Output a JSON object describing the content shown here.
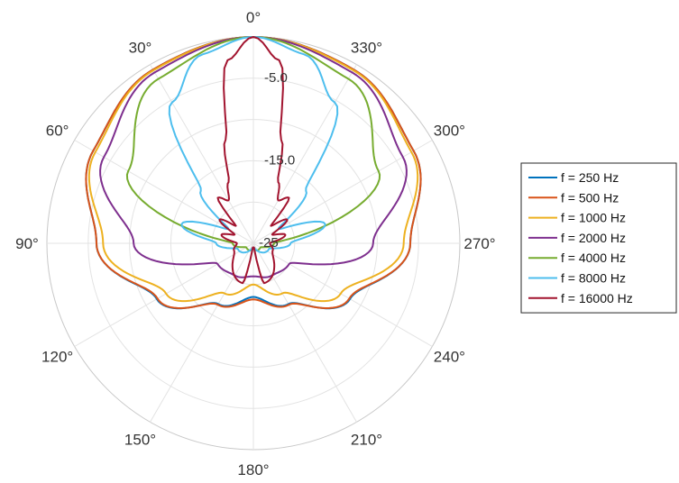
{
  "chart_data": {
    "type": "polar-line",
    "title": "",
    "theta_direction": "counterclockwise",
    "theta_zero": "top",
    "theta_ticks": [
      {
        "deg": 0,
        "label": "0°"
      },
      {
        "deg": 30,
        "label": "30°"
      },
      {
        "deg": 60,
        "label": "60°"
      },
      {
        "deg": 90,
        "label": "90°"
      },
      {
        "deg": 120,
        "label": "120°"
      },
      {
        "deg": 150,
        "label": "150°"
      },
      {
        "deg": 180,
        "label": "180°"
      },
      {
        "deg": 210,
        "label": "210°"
      },
      {
        "deg": 240,
        "label": "240°"
      },
      {
        "deg": 270,
        "label": "270°"
      },
      {
        "deg": 300,
        "label": "300°"
      },
      {
        "deg": 330,
        "label": "330°"
      }
    ],
    "r_range": [
      -25,
      0
    ],
    "r_gridlines": [
      -25,
      -20,
      -15,
      -10,
      -5,
      0
    ],
    "r_tick_labels": [
      {
        "value": -5,
        "label": "-5.0"
      },
      {
        "value": -15,
        "label": "-15.0"
      },
      {
        "value": -25,
        "label": "-25"
      }
    ],
    "grid": true,
    "legend_position": "right",
    "series": [
      {
        "name": "f = 250 Hz",
        "color": "#0072BD",
        "points": [
          [
            0,
            0
          ],
          [
            30,
            -0.7
          ],
          [
            60,
            -2.6
          ],
          [
            90,
            -6.0
          ],
          [
            120,
            -11.5
          ],
          [
            150,
            -16.5
          ],
          [
            180,
            -18.5
          ],
          [
            210,
            -16.5
          ],
          [
            240,
            -11.5
          ],
          [
            270,
            -6.0
          ],
          [
            300,
            -2.6
          ],
          [
            330,
            -0.7
          ]
        ]
      },
      {
        "name": "f = 500 Hz",
        "color": "#D95319",
        "points": [
          [
            0,
            0
          ],
          [
            30,
            -0.7
          ],
          [
            60,
            -2.6
          ],
          [
            90,
            -6.0
          ],
          [
            120,
            -11.6
          ],
          [
            150,
            -16.4
          ],
          [
            180,
            -18.2
          ],
          [
            210,
            -16.4
          ],
          [
            240,
            -11.6
          ],
          [
            270,
            -6.0
          ],
          [
            300,
            -2.6
          ],
          [
            330,
            -0.7
          ]
        ]
      },
      {
        "name": "f = 1000 Hz",
        "color": "#EDB120",
        "points": [
          [
            0,
            0
          ],
          [
            30,
            -0.8
          ],
          [
            60,
            -2.9
          ],
          [
            90,
            -6.8
          ],
          [
            120,
            -12.8
          ],
          [
            150,
            -18.0
          ],
          [
            180,
            -20.0
          ],
          [
            210,
            -18.0
          ],
          [
            240,
            -12.8
          ],
          [
            270,
            -6.8
          ],
          [
            300,
            -2.9
          ],
          [
            330,
            -0.8
          ]
        ]
      },
      {
        "name": "f = 2000 Hz",
        "color": "#7E2F8E",
        "points": [
          [
            0,
            0
          ],
          [
            30,
            -1.1
          ],
          [
            60,
            -4.1
          ],
          [
            90,
            -10.5
          ],
          [
            120,
            -20.0
          ],
          [
            150,
            -20.5
          ],
          [
            180,
            -21.0
          ],
          [
            210,
            -20.5
          ],
          [
            240,
            -20.0
          ],
          [
            270,
            -10.5
          ],
          [
            300,
            -4.1
          ],
          [
            330,
            -1.1
          ]
        ]
      },
      {
        "name": "f = 4000 Hz",
        "color": "#77AC30",
        "points": [
          [
            0,
            0
          ],
          [
            30,
            -2.0
          ],
          [
            60,
            -7.5
          ],
          [
            90,
            -22.5
          ],
          [
            120,
            -24.0
          ],
          [
            150,
            -24.0
          ],
          [
            180,
            -24.5
          ],
          [
            210,
            -24.0
          ],
          [
            240,
            -24.0
          ],
          [
            270,
            -22.5
          ],
          [
            300,
            -7.5
          ],
          [
            330,
            -2.0
          ]
        ]
      },
      {
        "name": "f = 8000 Hz",
        "color": "#4DBEEE",
        "points": [
          [
            0,
            0
          ],
          [
            15,
            -1.3
          ],
          [
            30,
            -5.3
          ],
          [
            45,
            -16.0
          ],
          [
            60,
            -21.5
          ],
          [
            75,
            -16.0
          ],
          [
            90,
            -20.5
          ],
          [
            110,
            -23.0
          ],
          [
            180,
            -24.5
          ],
          [
            250,
            -23.0
          ],
          [
            270,
            -20.5
          ],
          [
            285,
            -16.0
          ],
          [
            300,
            -21.5
          ],
          [
            315,
            -16.0
          ],
          [
            330,
            -5.3
          ],
          [
            345,
            -1.3
          ]
        ]
      },
      {
        "name": "f = 16000 Hz",
        "color": "#A2142F",
        "points": [
          [
            0,
            0
          ],
          [
            8,
            -2.6
          ],
          [
            15,
            -12.0
          ],
          [
            22,
            -17.0
          ],
          [
            30,
            -19.0
          ],
          [
            38,
            -18.0
          ],
          [
            45,
            -22.0
          ],
          [
            55,
            -20.0
          ],
          [
            65,
            -22.5
          ],
          [
            75,
            -21.0
          ],
          [
            90,
            -23.0
          ],
          [
            110,
            -22.5
          ],
          [
            165,
            -20.0
          ],
          [
            172,
            -24.5
          ],
          [
            180,
            -24.5
          ],
          [
            188,
            -24.5
          ],
          [
            195,
            -20.0
          ],
          [
            250,
            -22.5
          ],
          [
            270,
            -23.0
          ],
          [
            285,
            -21.0
          ],
          [
            295,
            -22.5
          ],
          [
            305,
            -20.0
          ],
          [
            315,
            -22.0
          ],
          [
            322,
            -18.0
          ],
          [
            330,
            -19.0
          ],
          [
            338,
            -17.0
          ],
          [
            345,
            -12.0
          ],
          [
            352,
            -2.6
          ]
        ]
      }
    ]
  }
}
